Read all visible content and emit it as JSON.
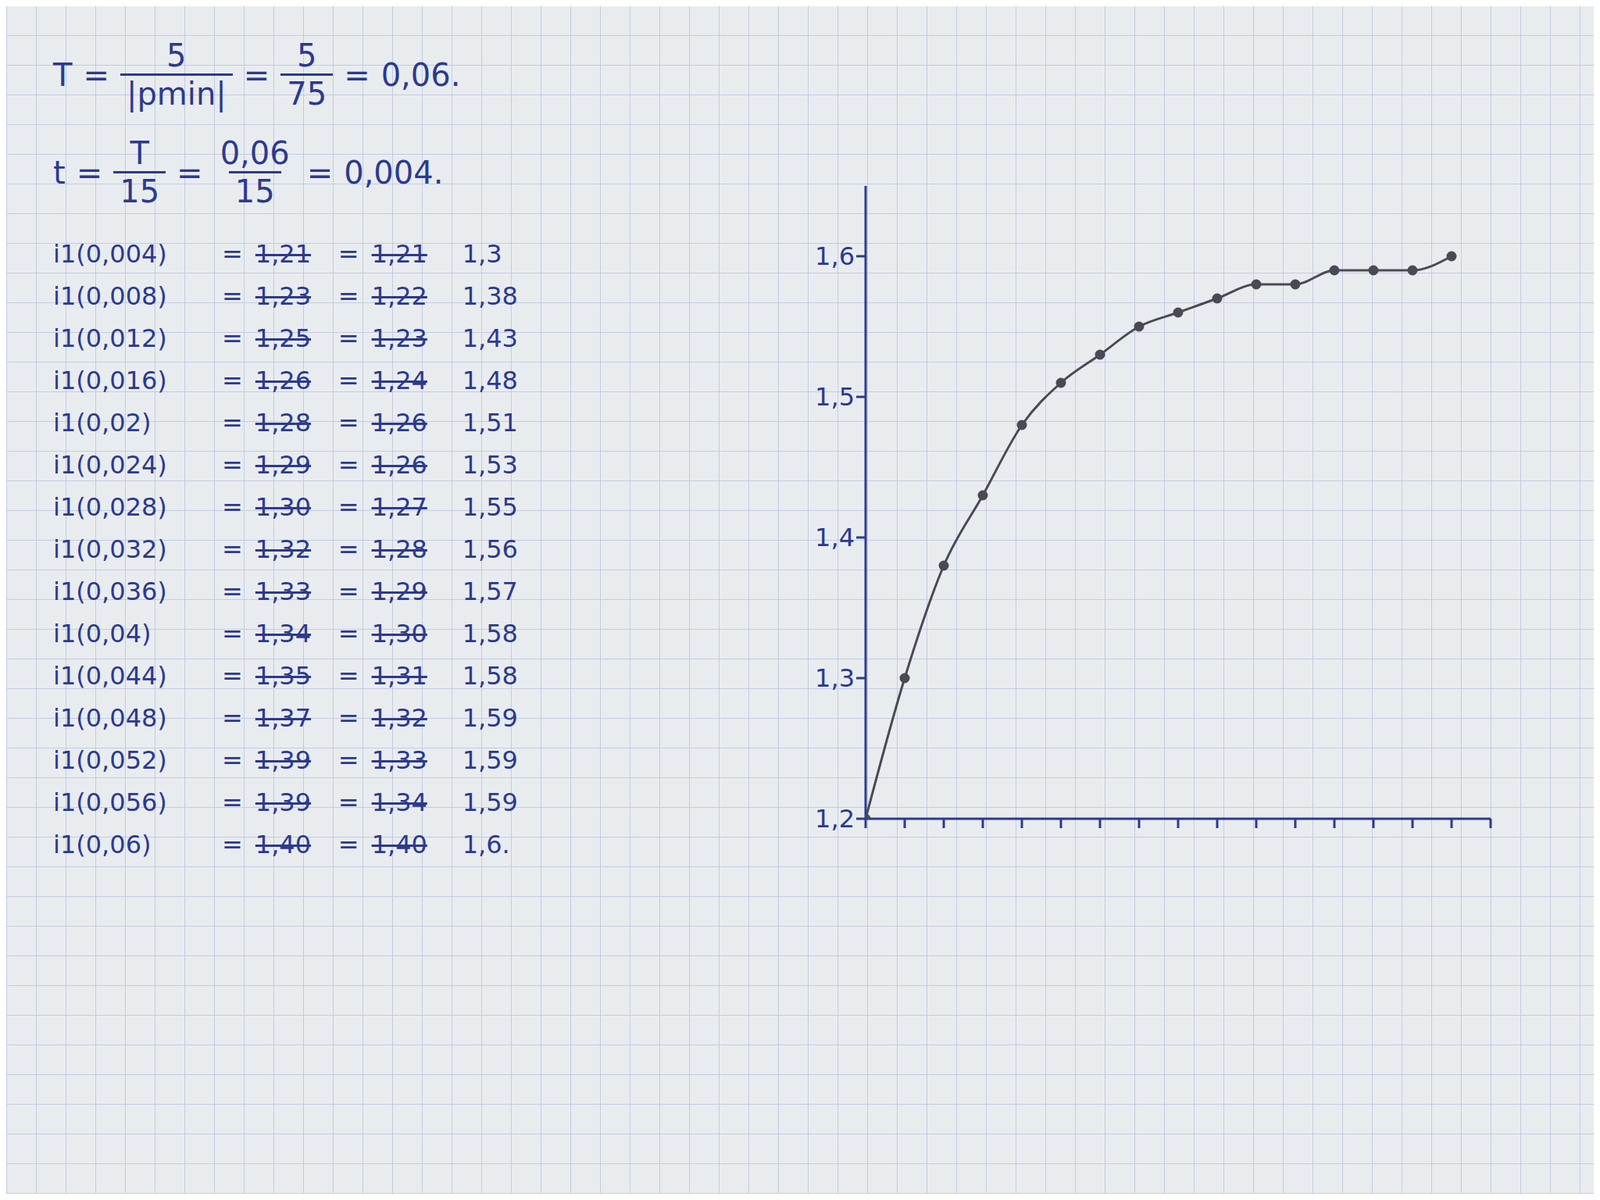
{
  "formulas": [
    {
      "parts": [
        "T",
        "=",
        {
          "num": "5",
          "den": "|pmin|"
        },
        "=",
        {
          "num": "5",
          "den": "75"
        },
        "=",
        "0,06."
      ]
    },
    {
      "parts": [
        "t",
        "=",
        {
          "num": "T",
          "den": "15"
        },
        "=",
        {
          "num": "0,06",
          "den": "15"
        },
        "=",
        "0,004."
      ]
    }
  ],
  "table": {
    "sign": "=",
    "rows": [
      {
        "label": "i1(0,004)",
        "crossed": [
          "1,21",
          "1,21"
        ],
        "value": "1,3"
      },
      {
        "label": "i1(0,008)",
        "crossed": [
          "1,23",
          "1,22"
        ],
        "value": "1,38"
      },
      {
        "label": "i1(0,012)",
        "crossed": [
          "1,25",
          "1,23"
        ],
        "value": "1,43"
      },
      {
        "label": "i1(0,016)",
        "crossed": [
          "1,26",
          "1,24"
        ],
        "value": "1,48"
      },
      {
        "label": "i1(0,02)",
        "crossed": [
          "1,28",
          "1,26"
        ],
        "value": "1,51"
      },
      {
        "label": "i1(0,024)",
        "crossed": [
          "1,29",
          "1,26"
        ],
        "value": "1,53"
      },
      {
        "label": "i1(0,028)",
        "crossed": [
          "1,30",
          "1,27"
        ],
        "value": "1,55"
      },
      {
        "label": "i1(0,032)",
        "crossed": [
          "1,32",
          "1,28"
        ],
        "value": "1,56"
      },
      {
        "label": "i1(0,036)",
        "crossed": [
          "1,33",
          "1,29"
        ],
        "value": "1,57"
      },
      {
        "label": "i1(0,04)",
        "crossed": [
          "1,34",
          "1,30"
        ],
        "value": "1,58"
      },
      {
        "label": "i1(0,044)",
        "crossed": [
          "1,35",
          "1,31"
        ],
        "value": "1,58"
      },
      {
        "label": "i1(0,048)",
        "crossed": [
          "1,37",
          "1,32"
        ],
        "value": "1,59"
      },
      {
        "label": "i1(0,052)",
        "crossed": [
          "1,39",
          "1,33"
        ],
        "value": "1,59"
      },
      {
        "label": "i1(0,056)",
        "crossed": [
          "1,39",
          "1,34"
        ],
        "value": "1,59"
      },
      {
        "label": "i1(0,06)",
        "crossed": [
          "1,40",
          "1,40"
        ],
        "value": "1,6."
      }
    ]
  },
  "chart_data": {
    "type": "line",
    "x": [
      0,
      0.004,
      0.008,
      0.012,
      0.016,
      0.02,
      0.024,
      0.028,
      0.032,
      0.036,
      0.04,
      0.044,
      0.048,
      0.052,
      0.056,
      0.06
    ],
    "values": [
      1.2,
      1.3,
      1.38,
      1.43,
      1.48,
      1.51,
      1.53,
      1.55,
      1.56,
      1.57,
      1.58,
      1.58,
      1.59,
      1.59,
      1.59,
      1.6
    ],
    "color": "#4a4a55",
    "marker": "circle",
    "line_style": "solid",
    "xlim": [
      0,
      0.064
    ],
    "xticks": [
      0,
      0.004,
      0.008,
      0.012,
      0.016,
      0.02,
      0.024,
      0.028,
      0.032,
      0.036,
      0.04,
      0.044,
      0.048,
      0.052,
      0.056,
      0.06,
      0.064
    ],
    "ylim": [
      1.2,
      1.65
    ],
    "yticks": [
      {
        "value": 1.2,
        "label": "1,2"
      },
      {
        "value": 1.3,
        "label": "1,3"
      },
      {
        "value": 1.4,
        "label": "1,4"
      },
      {
        "value": 1.5,
        "label": "1,5"
      },
      {
        "value": 1.6,
        "label": "1,6"
      }
    ],
    "tick_labels": "y",
    "grid": false
  }
}
